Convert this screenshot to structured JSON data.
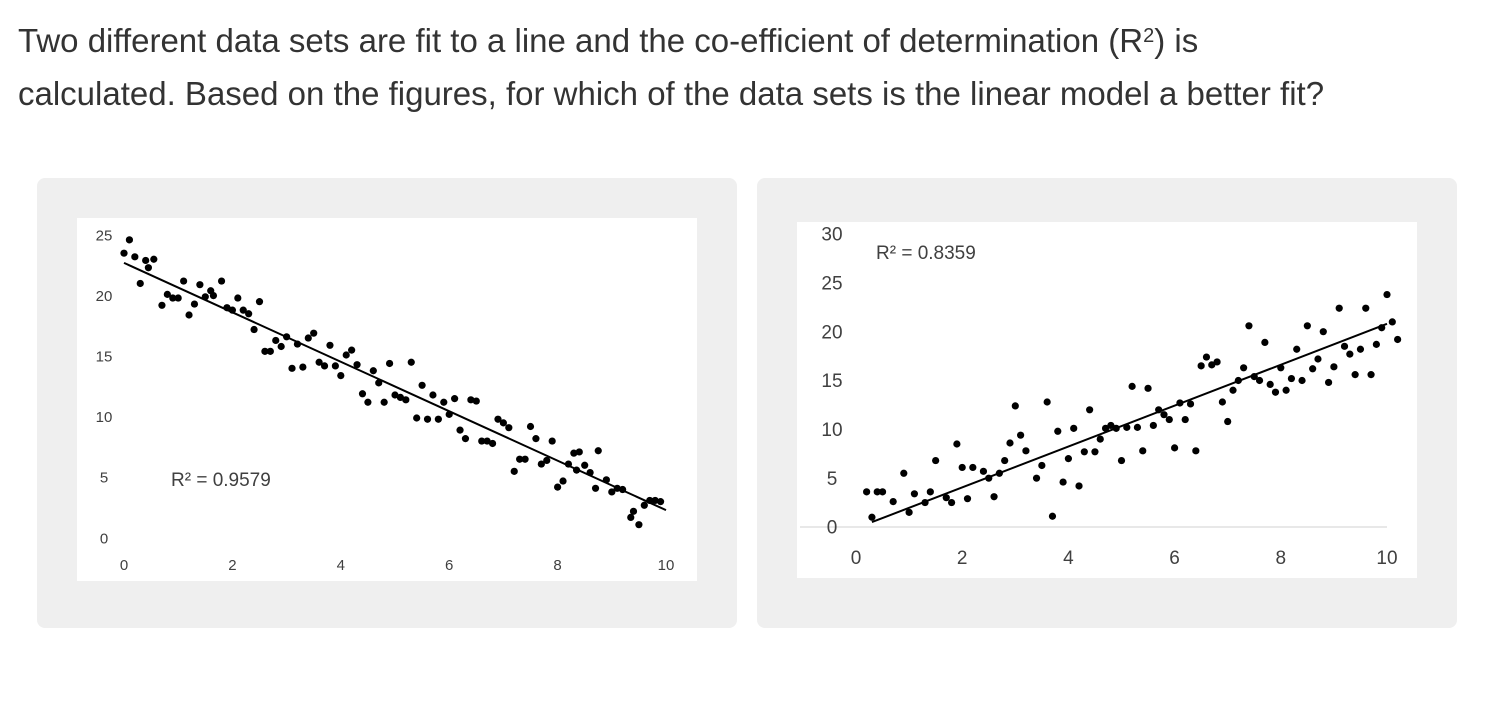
{
  "question": {
    "line1_before_sup": "Two different data sets are fit to a line and the co-efficient of determination (R",
    "sup": "2",
    "line1_after_sup": ") is",
    "line2": "calculated. Based on the figures, for which of the data sets is the linear model a better fit?"
  },
  "chart_data": [
    {
      "type": "scatter",
      "title": "",
      "xlabel": "",
      "ylabel": "",
      "xlim": [
        0,
        10
      ],
      "ylim": [
        0,
        25
      ],
      "x_ticks": [
        0,
        2,
        4,
        6,
        8,
        10
      ],
      "y_ticks": [
        0,
        5,
        10,
        15,
        20,
        25
      ],
      "grid": false,
      "annotation": "R² = 0.9579",
      "trendline": {
        "x": [
          0,
          10
        ],
        "y": [
          22.7,
          2.3
        ]
      },
      "points": [
        [
          0.0,
          23.5
        ],
        [
          0.1,
          24.6
        ],
        [
          0.2,
          23.2
        ],
        [
          0.3,
          21.0
        ],
        [
          0.4,
          22.9
        ],
        [
          0.45,
          22.3
        ],
        [
          0.55,
          23.0
        ],
        [
          0.7,
          19.2
        ],
        [
          0.8,
          20.1
        ],
        [
          0.9,
          19.8
        ],
        [
          1.0,
          19.8
        ],
        [
          1.1,
          21.2
        ],
        [
          1.2,
          18.4
        ],
        [
          1.3,
          19.3
        ],
        [
          1.4,
          20.9
        ],
        [
          1.5,
          19.9
        ],
        [
          1.6,
          20.4
        ],
        [
          1.65,
          20.0
        ],
        [
          1.8,
          21.2
        ],
        [
          1.9,
          19.0
        ],
        [
          2.0,
          18.8
        ],
        [
          2.1,
          19.8
        ],
        [
          2.2,
          18.8
        ],
        [
          2.3,
          18.5
        ],
        [
          2.4,
          17.2
        ],
        [
          2.5,
          19.5
        ],
        [
          2.6,
          15.4
        ],
        [
          2.7,
          15.4
        ],
        [
          2.8,
          16.3
        ],
        [
          2.9,
          15.8
        ],
        [
          3.0,
          16.6
        ],
        [
          3.1,
          14.0
        ],
        [
          3.2,
          16.0
        ],
        [
          3.3,
          14.1
        ],
        [
          3.4,
          16.5
        ],
        [
          3.5,
          16.9
        ],
        [
          3.6,
          14.5
        ],
        [
          3.7,
          14.2
        ],
        [
          3.8,
          15.9
        ],
        [
          3.9,
          14.2
        ],
        [
          4.0,
          13.4
        ],
        [
          4.1,
          15.1
        ],
        [
          4.2,
          15.5
        ],
        [
          4.3,
          14.3
        ],
        [
          4.4,
          11.9
        ],
        [
          4.5,
          11.2
        ],
        [
          4.6,
          13.8
        ],
        [
          4.7,
          12.8
        ],
        [
          4.8,
          11.2
        ],
        [
          4.9,
          14.4
        ],
        [
          5.0,
          11.8
        ],
        [
          5.1,
          11.6
        ],
        [
          5.2,
          11.4
        ],
        [
          5.3,
          14.5
        ],
        [
          5.4,
          9.9
        ],
        [
          5.5,
          12.6
        ],
        [
          5.6,
          9.8
        ],
        [
          5.7,
          11.8
        ],
        [
          5.8,
          9.8
        ],
        [
          5.9,
          11.2
        ],
        [
          6.0,
          10.2
        ],
        [
          6.1,
          11.5
        ],
        [
          6.2,
          8.9
        ],
        [
          6.3,
          8.2
        ],
        [
          6.4,
          11.4
        ],
        [
          6.5,
          11.3
        ],
        [
          6.6,
          8.0
        ],
        [
          6.7,
          8.0
        ],
        [
          6.8,
          7.8
        ],
        [
          6.9,
          9.8
        ],
        [
          7.0,
          9.5
        ],
        [
          7.1,
          9.1
        ],
        [
          7.2,
          5.5
        ],
        [
          7.3,
          6.5
        ],
        [
          7.4,
          6.5
        ],
        [
          7.5,
          9.2
        ],
        [
          7.6,
          8.2
        ],
        [
          7.7,
          6.1
        ],
        [
          7.8,
          6.4
        ],
        [
          7.9,
          8.0
        ],
        [
          8.0,
          4.2
        ],
        [
          8.1,
          4.7
        ],
        [
          8.2,
          6.1
        ],
        [
          8.3,
          7.0
        ],
        [
          8.35,
          5.6
        ],
        [
          8.4,
          7.1
        ],
        [
          8.5,
          6.0
        ],
        [
          8.6,
          5.4
        ],
        [
          8.7,
          4.1
        ],
        [
          8.75,
          7.2
        ],
        [
          8.9,
          4.8
        ],
        [
          9.0,
          3.8
        ],
        [
          9.1,
          4.1
        ],
        [
          9.2,
          4.0
        ],
        [
          9.35,
          1.7
        ],
        [
          9.4,
          2.2
        ],
        [
          9.5,
          1.1
        ],
        [
          9.6,
          2.7
        ],
        [
          9.7,
          3.1
        ],
        [
          9.8,
          3.1
        ],
        [
          9.9,
          3.0
        ]
      ]
    },
    {
      "type": "scatter",
      "title": "",
      "xlabel": "",
      "ylabel": "",
      "xlim": [
        0,
        10
      ],
      "ylim": [
        0,
        30
      ],
      "x_ticks": [
        0,
        2,
        4,
        6,
        8,
        10
      ],
      "y_ticks": [
        0,
        5,
        10,
        15,
        20,
        25,
        30
      ],
      "grid": false,
      "annotation": "R² = 0.8359",
      "trendline": {
        "x": [
          0.3,
          10
        ],
        "y": [
          0.5,
          20.8
        ]
      },
      "points": [
        [
          0.2,
          3.6
        ],
        [
          0.3,
          1.0
        ],
        [
          0.4,
          3.6
        ],
        [
          0.5,
          3.6
        ],
        [
          0.7,
          2.6
        ],
        [
          0.9,
          5.5
        ],
        [
          1.0,
          1.5
        ],
        [
          1.1,
          3.4
        ],
        [
          1.3,
          2.5
        ],
        [
          1.4,
          3.6
        ],
        [
          1.5,
          6.8
        ],
        [
          1.7,
          3.0
        ],
        [
          1.8,
          2.5
        ],
        [
          1.9,
          8.5
        ],
        [
          2.0,
          6.1
        ],
        [
          2.1,
          2.9
        ],
        [
          2.2,
          6.1
        ],
        [
          2.4,
          5.7
        ],
        [
          2.5,
          5.0
        ],
        [
          2.6,
          3.1
        ],
        [
          2.7,
          5.5
        ],
        [
          2.8,
          6.8
        ],
        [
          2.9,
          8.6
        ],
        [
          3.0,
          12.4
        ],
        [
          3.1,
          9.4
        ],
        [
          3.2,
          7.8
        ],
        [
          3.4,
          5.0
        ],
        [
          3.5,
          6.3
        ],
        [
          3.6,
          12.8
        ],
        [
          3.7,
          1.1
        ],
        [
          3.8,
          9.8
        ],
        [
          3.9,
          4.6
        ],
        [
          4.0,
          7.0
        ],
        [
          4.1,
          10.1
        ],
        [
          4.2,
          4.2
        ],
        [
          4.3,
          7.7
        ],
        [
          4.4,
          12.0
        ],
        [
          4.5,
          7.7
        ],
        [
          4.6,
          9.0
        ],
        [
          4.7,
          10.1
        ],
        [
          4.8,
          10.4
        ],
        [
          4.9,
          10.1
        ],
        [
          5.0,
          6.8
        ],
        [
          5.1,
          10.2
        ],
        [
          5.2,
          14.4
        ],
        [
          5.3,
          10.2
        ],
        [
          5.4,
          7.8
        ],
        [
          5.5,
          14.2
        ],
        [
          5.6,
          10.4
        ],
        [
          5.7,
          12.0
        ],
        [
          5.8,
          11.5
        ],
        [
          5.9,
          11.0
        ],
        [
          6.0,
          8.1
        ],
        [
          6.1,
          12.7
        ],
        [
          6.2,
          11.0
        ],
        [
          6.3,
          12.6
        ],
        [
          6.4,
          7.8
        ],
        [
          6.5,
          16.5
        ],
        [
          6.6,
          17.4
        ],
        [
          6.7,
          16.6
        ],
        [
          6.8,
          16.9
        ],
        [
          6.9,
          12.8
        ],
        [
          7.0,
          10.8
        ],
        [
          7.1,
          14.0
        ],
        [
          7.2,
          15.0
        ],
        [
          7.3,
          16.3
        ],
        [
          7.4,
          20.6
        ],
        [
          7.5,
          15.4
        ],
        [
          7.6,
          15.0
        ],
        [
          7.7,
          18.9
        ],
        [
          7.8,
          14.6
        ],
        [
          7.9,
          13.8
        ],
        [
          8.0,
          16.3
        ],
        [
          8.1,
          14.0
        ],
        [
          8.2,
          15.2
        ],
        [
          8.3,
          18.2
        ],
        [
          8.4,
          15.0
        ],
        [
          8.5,
          20.6
        ],
        [
          8.6,
          16.2
        ],
        [
          8.7,
          17.2
        ],
        [
          8.8,
          20.0
        ],
        [
          8.9,
          14.8
        ],
        [
          9.0,
          16.4
        ],
        [
          9.1,
          22.4
        ],
        [
          9.2,
          18.5
        ],
        [
          9.3,
          17.7
        ],
        [
          9.4,
          15.6
        ],
        [
          9.5,
          18.2
        ],
        [
          9.6,
          22.4
        ],
        [
          9.7,
          15.6
        ],
        [
          9.8,
          18.7
        ],
        [
          9.9,
          20.4
        ],
        [
          10.0,
          23.8
        ],
        [
          10.1,
          21.0
        ],
        [
          10.2,
          19.2
        ]
      ]
    }
  ]
}
